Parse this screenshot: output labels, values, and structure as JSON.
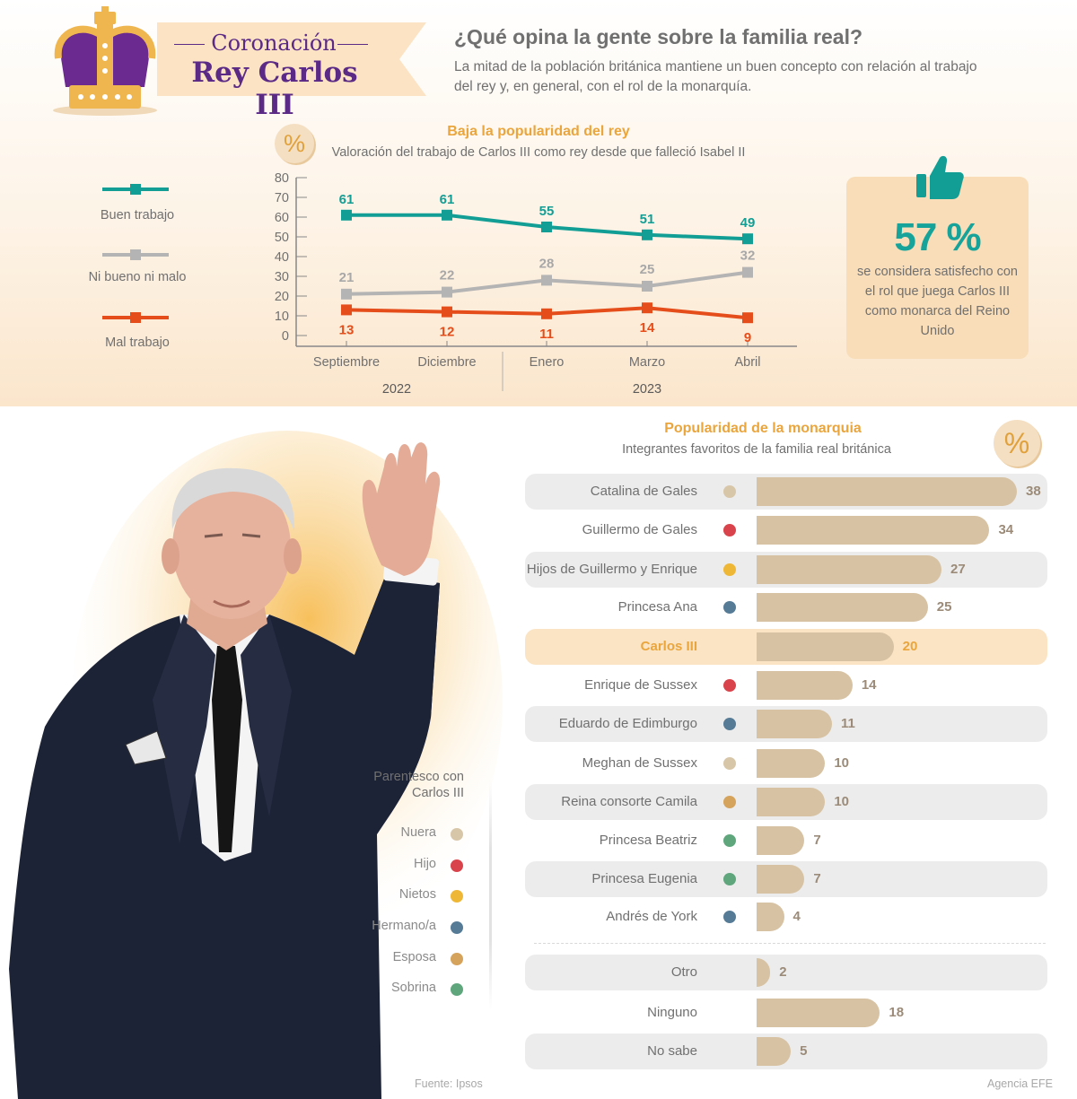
{
  "header": {
    "kicker": "Coronación",
    "title": "Rey Carlos III",
    "question": "¿Qué opina la gente sobre la familia real?",
    "description": "La mitad de la población británica mantiene un buen concepto con relación al trabajo del rey y, en general, con el rol de la monarquía."
  },
  "percent_symbol": "%",
  "satisfied": {
    "value": "57 %",
    "text": "se considera satisfecho con el rol que juega Carlos III como monarca del Reino Unido",
    "icon": "thumbs-up-icon"
  },
  "kinship": {
    "title": "Parentesco con Carlos III",
    "items": [
      {
        "label": "Nuera",
        "color": "#d8c6a8"
      },
      {
        "label": "Hijo",
        "color": "#d9434b"
      },
      {
        "label": "Nietos",
        "color": "#efb736"
      },
      {
        "label": "Hermano/a",
        "color": "#567b96"
      },
      {
        "label": "Esposa",
        "color": "#d5a35b"
      },
      {
        "label": "Sobrina",
        "color": "#5fa67d"
      }
    ]
  },
  "footer": {
    "source": "Fuente: Ipsos",
    "agency": "Agencia EFE"
  },
  "chart_data": [
    {
      "type": "line",
      "title": "Baja la popularidad del rey",
      "subtitle": "Valoración del trabajo de Carlos III como rey desde que falleció Isabel II",
      "categories": [
        "Septiembre",
        "Diciembre",
        "Enero",
        "Marzo",
        "Abril"
      ],
      "year_groups": [
        {
          "label": "2022",
          "categories": [
            "Septiembre",
            "Diciembre"
          ]
        },
        {
          "label": "2023",
          "categories": [
            "Enero",
            "Marzo",
            "Abril"
          ]
        }
      ],
      "ylim": [
        0,
        80
      ],
      "yticks": [
        0,
        10,
        20,
        30,
        40,
        50,
        60,
        70,
        80
      ],
      "series": [
        {
          "name": "Buen trabajo",
          "color": "#139e95",
          "values": [
            61,
            61,
            55,
            51,
            49
          ]
        },
        {
          "name": "Ni bueno ni malo",
          "color": "#b4b4b4",
          "values": [
            21,
            22,
            28,
            25,
            32
          ]
        },
        {
          "name": "Mal trabajo",
          "color": "#e54e1b",
          "values": [
            13,
            12,
            11,
            14,
            9
          ]
        }
      ],
      "legend": "left"
    },
    {
      "type": "bar",
      "title": "Popularidad de la monarquia",
      "subtitle": "Integrantes favoritos de la familia real británica",
      "bar_color": "#d7c3a4",
      "max": 38,
      "groups": [
        [
          {
            "name": "Catalina de Gales",
            "value": 38,
            "kin": "#d8c6a8"
          },
          {
            "name": "Guillermo de Gales",
            "value": 34,
            "kin": "#d9434b"
          },
          {
            "name": "Hijos de Guillermo y Enrique",
            "value": 27,
            "kin": "#efb736"
          },
          {
            "name": "Princesa Ana",
            "value": 25,
            "kin": "#567b96"
          },
          {
            "name": "Carlos III",
            "value": 20,
            "highlight": true
          },
          {
            "name": "Enrique de Sussex",
            "value": 14,
            "kin": "#d9434b"
          },
          {
            "name": "Eduardo de Edimburgo",
            "value": 11,
            "kin": "#567b96"
          },
          {
            "name": "Meghan de Sussex",
            "value": 10,
            "kin": "#d8c6a8"
          },
          {
            "name": "Reina consorte Camila",
            "value": 10,
            "kin": "#d5a35b"
          },
          {
            "name": "Princesa Beatriz",
            "value": 7,
            "kin": "#5fa67d"
          },
          {
            "name": "Princesa Eugenia",
            "value": 7,
            "kin": "#5fa67d"
          },
          {
            "name": "Andrés de York",
            "value": 4,
            "kin": "#567b96"
          }
        ],
        [
          {
            "name": "Otro",
            "value": 2
          },
          {
            "name": "Ninguno",
            "value": 18
          },
          {
            "name": "No sabe",
            "value": 5
          }
        ]
      ]
    }
  ]
}
